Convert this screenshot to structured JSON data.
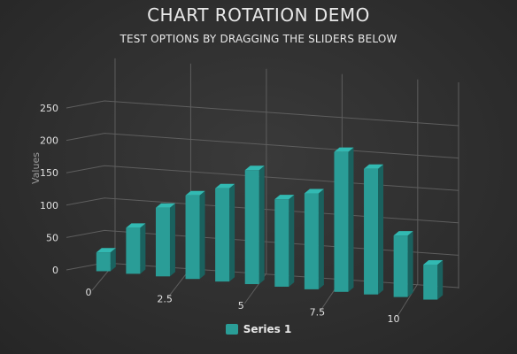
{
  "title": "CHART ROTATION DEMO",
  "subtitle": "TEST OPTIONS BY DRAGGING THE SLIDERS BELOW",
  "chart_data": {
    "type": "bar",
    "title": "CHART ROTATION DEMO",
    "subtitle": "TEST OPTIONS BY DRAGGING THE SLIDERS BELOW",
    "xlabel": "",
    "ylabel": "Values",
    "x": [
      0,
      1,
      2,
      3,
      4,
      5,
      6,
      7,
      8,
      9,
      10,
      11
    ],
    "x_ticks": [
      "0",
      "2.5",
      "5",
      "7.5",
      "10"
    ],
    "y_ticks": [
      "0",
      "50",
      "100",
      "150",
      "200",
      "250"
    ],
    "ylim": [
      0,
      250
    ],
    "grid": true,
    "legend_position": "bottom-center",
    "series": [
      {
        "name": "Series 1",
        "color": "#2a9d97",
        "values": [
          29,
          71,
          106,
          129,
          144,
          176,
          135,
          148,
          216,
          194,
          95,
          54
        ]
      }
    ]
  },
  "legend": {
    "items": [
      "Series 1"
    ]
  }
}
